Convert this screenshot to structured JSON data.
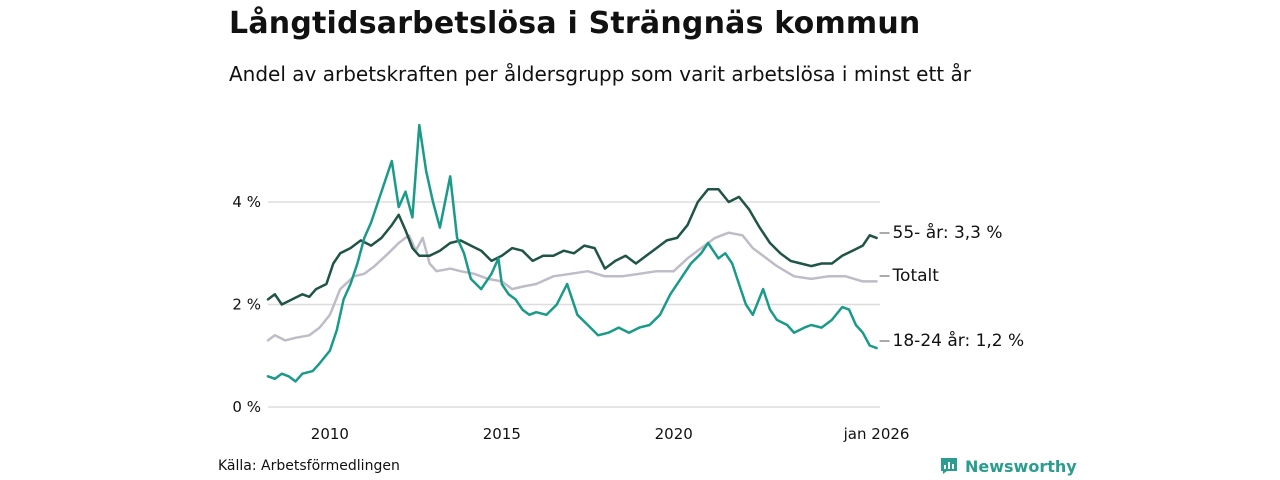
{
  "title": "Långtidsarbetslösa i Strängnäs kommun",
  "subtitle": "Andel av arbetskraften per åldersgrupp som varit arbetslösa i minst ett år",
  "source": "Källa: Arbetsförmedlingen",
  "brand": "Newsworthy",
  "colors": {
    "older": "#1f5446",
    "total": "#bfbcc8",
    "young": "#1a9a88",
    "grid": "#dddddd",
    "brand": "#2a9d8f"
  },
  "chart_data": {
    "type": "line",
    "title": "Långtidsarbetslösa i Strängnäs kommun",
    "xlabel": "",
    "ylabel": "",
    "xlim": [
      2008.2,
      2026.0
    ],
    "ylim": [
      0,
      5.6
    ],
    "x_ticks": [
      {
        "value": 2010,
        "label": "2010"
      },
      {
        "value": 2015,
        "label": "2015"
      },
      {
        "value": 2020,
        "label": "2020"
      },
      {
        "value": 2025.9,
        "label": "jan 2026"
      }
    ],
    "y_ticks": [
      {
        "value": 0,
        "label": "0 %"
      },
      {
        "value": 2,
        "label": "2 %"
      },
      {
        "value": 4,
        "label": "4 %"
      }
    ],
    "grid": true,
    "series": [
      {
        "name": "Totalt",
        "label": "Totalt",
        "color_key": "total",
        "points": [
          [
            2008.2,
            1.3
          ],
          [
            2008.4,
            1.4
          ],
          [
            2008.7,
            1.3
          ],
          [
            2009.0,
            1.35
          ],
          [
            2009.4,
            1.4
          ],
          [
            2009.7,
            1.55
          ],
          [
            2010.0,
            1.8
          ],
          [
            2010.3,
            2.3
          ],
          [
            2010.7,
            2.55
          ],
          [
            2011.0,
            2.6
          ],
          [
            2011.3,
            2.75
          ],
          [
            2011.7,
            3.0
          ],
          [
            2012.0,
            3.2
          ],
          [
            2012.3,
            3.35
          ],
          [
            2012.5,
            3.05
          ],
          [
            2012.7,
            3.3
          ],
          [
            2012.9,
            2.8
          ],
          [
            2013.1,
            2.65
          ],
          [
            2013.5,
            2.7
          ],
          [
            2013.8,
            2.65
          ],
          [
            2014.2,
            2.6
          ],
          [
            2014.6,
            2.5
          ],
          [
            2015.0,
            2.45
          ],
          [
            2015.3,
            2.3
          ],
          [
            2015.6,
            2.35
          ],
          [
            2016.0,
            2.4
          ],
          [
            2016.5,
            2.55
          ],
          [
            2017.0,
            2.6
          ],
          [
            2017.5,
            2.65
          ],
          [
            2018.0,
            2.55
          ],
          [
            2018.5,
            2.55
          ],
          [
            2019.0,
            2.6
          ],
          [
            2019.5,
            2.65
          ],
          [
            2020.0,
            2.65
          ],
          [
            2020.4,
            2.9
          ],
          [
            2020.8,
            3.1
          ],
          [
            2021.2,
            3.3
          ],
          [
            2021.6,
            3.4
          ],
          [
            2022.0,
            3.35
          ],
          [
            2022.3,
            3.1
          ],
          [
            2022.6,
            2.95
          ],
          [
            2023.0,
            2.75
          ],
          [
            2023.5,
            2.55
          ],
          [
            2024.0,
            2.5
          ],
          [
            2024.5,
            2.55
          ],
          [
            2025.0,
            2.55
          ],
          [
            2025.5,
            2.45
          ],
          [
            2025.9,
            2.45
          ]
        ],
        "end_value": 2.45
      },
      {
        "name": "55- år",
        "label": "55- år: 3,3 %",
        "color_key": "older",
        "points": [
          [
            2008.2,
            2.1
          ],
          [
            2008.4,
            2.2
          ],
          [
            2008.6,
            2.0
          ],
          [
            2008.9,
            2.1
          ],
          [
            2009.2,
            2.2
          ],
          [
            2009.4,
            2.15
          ],
          [
            2009.6,
            2.3
          ],
          [
            2009.9,
            2.4
          ],
          [
            2010.1,
            2.8
          ],
          [
            2010.3,
            3.0
          ],
          [
            2010.6,
            3.1
          ],
          [
            2010.9,
            3.25
          ],
          [
            2011.2,
            3.15
          ],
          [
            2011.5,
            3.3
          ],
          [
            2011.8,
            3.55
          ],
          [
            2012.0,
            3.75
          ],
          [
            2012.2,
            3.45
          ],
          [
            2012.4,
            3.1
          ],
          [
            2012.6,
            2.95
          ],
          [
            2012.9,
            2.95
          ],
          [
            2013.2,
            3.05
          ],
          [
            2013.5,
            3.2
          ],
          [
            2013.8,
            3.25
          ],
          [
            2014.1,
            3.15
          ],
          [
            2014.4,
            3.05
          ],
          [
            2014.7,
            2.85
          ],
          [
            2015.0,
            2.95
          ],
          [
            2015.3,
            3.1
          ],
          [
            2015.6,
            3.05
          ],
          [
            2015.9,
            2.85
          ],
          [
            2016.2,
            2.95
          ],
          [
            2016.5,
            2.95
          ],
          [
            2016.8,
            3.05
          ],
          [
            2017.1,
            3.0
          ],
          [
            2017.4,
            3.15
          ],
          [
            2017.7,
            3.1
          ],
          [
            2018.0,
            2.7
          ],
          [
            2018.3,
            2.85
          ],
          [
            2018.6,
            2.95
          ],
          [
            2018.9,
            2.8
          ],
          [
            2019.2,
            2.95
          ],
          [
            2019.5,
            3.1
          ],
          [
            2019.8,
            3.25
          ],
          [
            2020.1,
            3.3
          ],
          [
            2020.4,
            3.55
          ],
          [
            2020.7,
            4.0
          ],
          [
            2021.0,
            4.25
          ],
          [
            2021.3,
            4.25
          ],
          [
            2021.6,
            4.0
          ],
          [
            2021.9,
            4.1
          ],
          [
            2022.2,
            3.85
          ],
          [
            2022.5,
            3.5
          ],
          [
            2022.8,
            3.2
          ],
          [
            2023.1,
            3.0
          ],
          [
            2023.4,
            2.85
          ],
          [
            2023.7,
            2.8
          ],
          [
            2024.0,
            2.75
          ],
          [
            2024.3,
            2.8
          ],
          [
            2024.6,
            2.8
          ],
          [
            2024.9,
            2.95
          ],
          [
            2025.2,
            3.05
          ],
          [
            2025.5,
            3.15
          ],
          [
            2025.7,
            3.35
          ],
          [
            2025.9,
            3.3
          ]
        ],
        "end_value": 3.3
      },
      {
        "name": "18-24 år",
        "label": "18-24 år: 1,2 %",
        "color_key": "young",
        "points": [
          [
            2008.2,
            0.6
          ],
          [
            2008.4,
            0.55
          ],
          [
            2008.6,
            0.65
          ],
          [
            2008.8,
            0.6
          ],
          [
            2009.0,
            0.5
          ],
          [
            2009.2,
            0.65
          ],
          [
            2009.5,
            0.7
          ],
          [
            2009.7,
            0.85
          ],
          [
            2010.0,
            1.1
          ],
          [
            2010.2,
            1.5
          ],
          [
            2010.4,
            2.1
          ],
          [
            2010.6,
            2.4
          ],
          [
            2010.8,
            2.8
          ],
          [
            2011.0,
            3.3
          ],
          [
            2011.2,
            3.6
          ],
          [
            2011.4,
            4.0
          ],
          [
            2011.6,
            4.4
          ],
          [
            2011.8,
            4.8
          ],
          [
            2012.0,
            3.9
          ],
          [
            2012.2,
            4.2
          ],
          [
            2012.4,
            3.7
          ],
          [
            2012.6,
            5.5
          ],
          [
            2012.8,
            4.6
          ],
          [
            2013.0,
            4.0
          ],
          [
            2013.2,
            3.5
          ],
          [
            2013.5,
            4.5
          ],
          [
            2013.7,
            3.3
          ],
          [
            2013.9,
            3.0
          ],
          [
            2014.1,
            2.5
          ],
          [
            2014.4,
            2.3
          ],
          [
            2014.7,
            2.6
          ],
          [
            2014.9,
            2.9
          ],
          [
            2015.0,
            2.4
          ],
          [
            2015.2,
            2.2
          ],
          [
            2015.4,
            2.1
          ],
          [
            2015.6,
            1.9
          ],
          [
            2015.8,
            1.8
          ],
          [
            2016.0,
            1.85
          ],
          [
            2016.3,
            1.8
          ],
          [
            2016.6,
            2.0
          ],
          [
            2016.9,
            2.4
          ],
          [
            2017.2,
            1.8
          ],
          [
            2017.5,
            1.6
          ],
          [
            2017.8,
            1.4
          ],
          [
            2018.1,
            1.45
          ],
          [
            2018.4,
            1.55
          ],
          [
            2018.7,
            1.45
          ],
          [
            2019.0,
            1.55
          ],
          [
            2019.3,
            1.6
          ],
          [
            2019.6,
            1.8
          ],
          [
            2019.9,
            2.2
          ],
          [
            2020.2,
            2.5
          ],
          [
            2020.5,
            2.8
          ],
          [
            2020.8,
            3.0
          ],
          [
            2021.0,
            3.2
          ],
          [
            2021.3,
            2.9
          ],
          [
            2021.5,
            3.0
          ],
          [
            2021.7,
            2.8
          ],
          [
            2021.9,
            2.4
          ],
          [
            2022.1,
            2.0
          ],
          [
            2022.3,
            1.8
          ],
          [
            2022.6,
            2.3
          ],
          [
            2022.8,
            1.9
          ],
          [
            2023.0,
            1.7
          ],
          [
            2023.3,
            1.6
          ],
          [
            2023.5,
            1.45
          ],
          [
            2023.8,
            1.55
          ],
          [
            2024.0,
            1.6
          ],
          [
            2024.3,
            1.55
          ],
          [
            2024.6,
            1.7
          ],
          [
            2024.9,
            1.95
          ],
          [
            2025.1,
            1.9
          ],
          [
            2025.3,
            1.6
          ],
          [
            2025.5,
            1.45
          ],
          [
            2025.7,
            1.2
          ],
          [
            2025.9,
            1.15
          ]
        ],
        "end_value": 1.2
      }
    ]
  }
}
